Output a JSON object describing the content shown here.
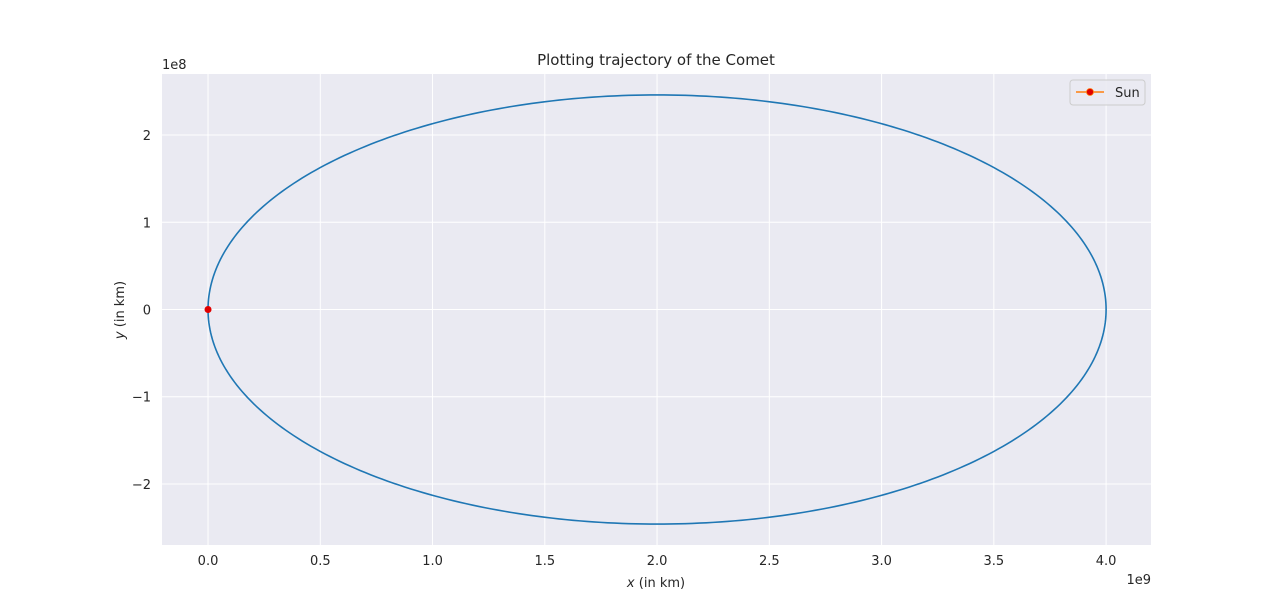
{
  "chart_data": {
    "type": "line",
    "title": "Plotting trajectory of the Comet",
    "xlabel": {
      "var": "x",
      "rest": " (in km)"
    },
    "ylabel": {
      "var": "y",
      "rest": " (in km)"
    },
    "x_offset_label": "1e9",
    "y_offset_label": "1e8",
    "x_scale": 1000000000,
    "y_scale": 100000000,
    "xlim": [
      -0.205,
      4.2
    ],
    "ylim": [
      -2.7,
      2.7
    ],
    "x_ticks": [
      0.0,
      0.5,
      1.0,
      1.5,
      2.0,
      2.5,
      3.0,
      3.5,
      4.0
    ],
    "x_tick_labels": [
      "0.0",
      "0.5",
      "1.0",
      "1.5",
      "2.0",
      "2.5",
      "3.0",
      "3.5",
      "4.0"
    ],
    "y_ticks": [
      -2,
      -1,
      0,
      1,
      2
    ],
    "y_tick_labels": [
      "−2",
      "−1",
      "0",
      "1",
      "2"
    ],
    "grid": true,
    "legend_position": "top-right",
    "series": [
      {
        "name": "",
        "kind": "ellipse-orbit",
        "center": [
          2.0,
          0.0
        ],
        "semi_major": 2.0,
        "semi_minor": 2.46,
        "color": "#1f77b4"
      },
      {
        "name": "Sun",
        "kind": "point",
        "x": 0.0,
        "y": 0.0,
        "marker_color": "#e00000",
        "line_color": "#ff7f0e"
      }
    ],
    "colors": {
      "plot_background": "#eaeaf2",
      "grid": "#ffffff"
    }
  }
}
